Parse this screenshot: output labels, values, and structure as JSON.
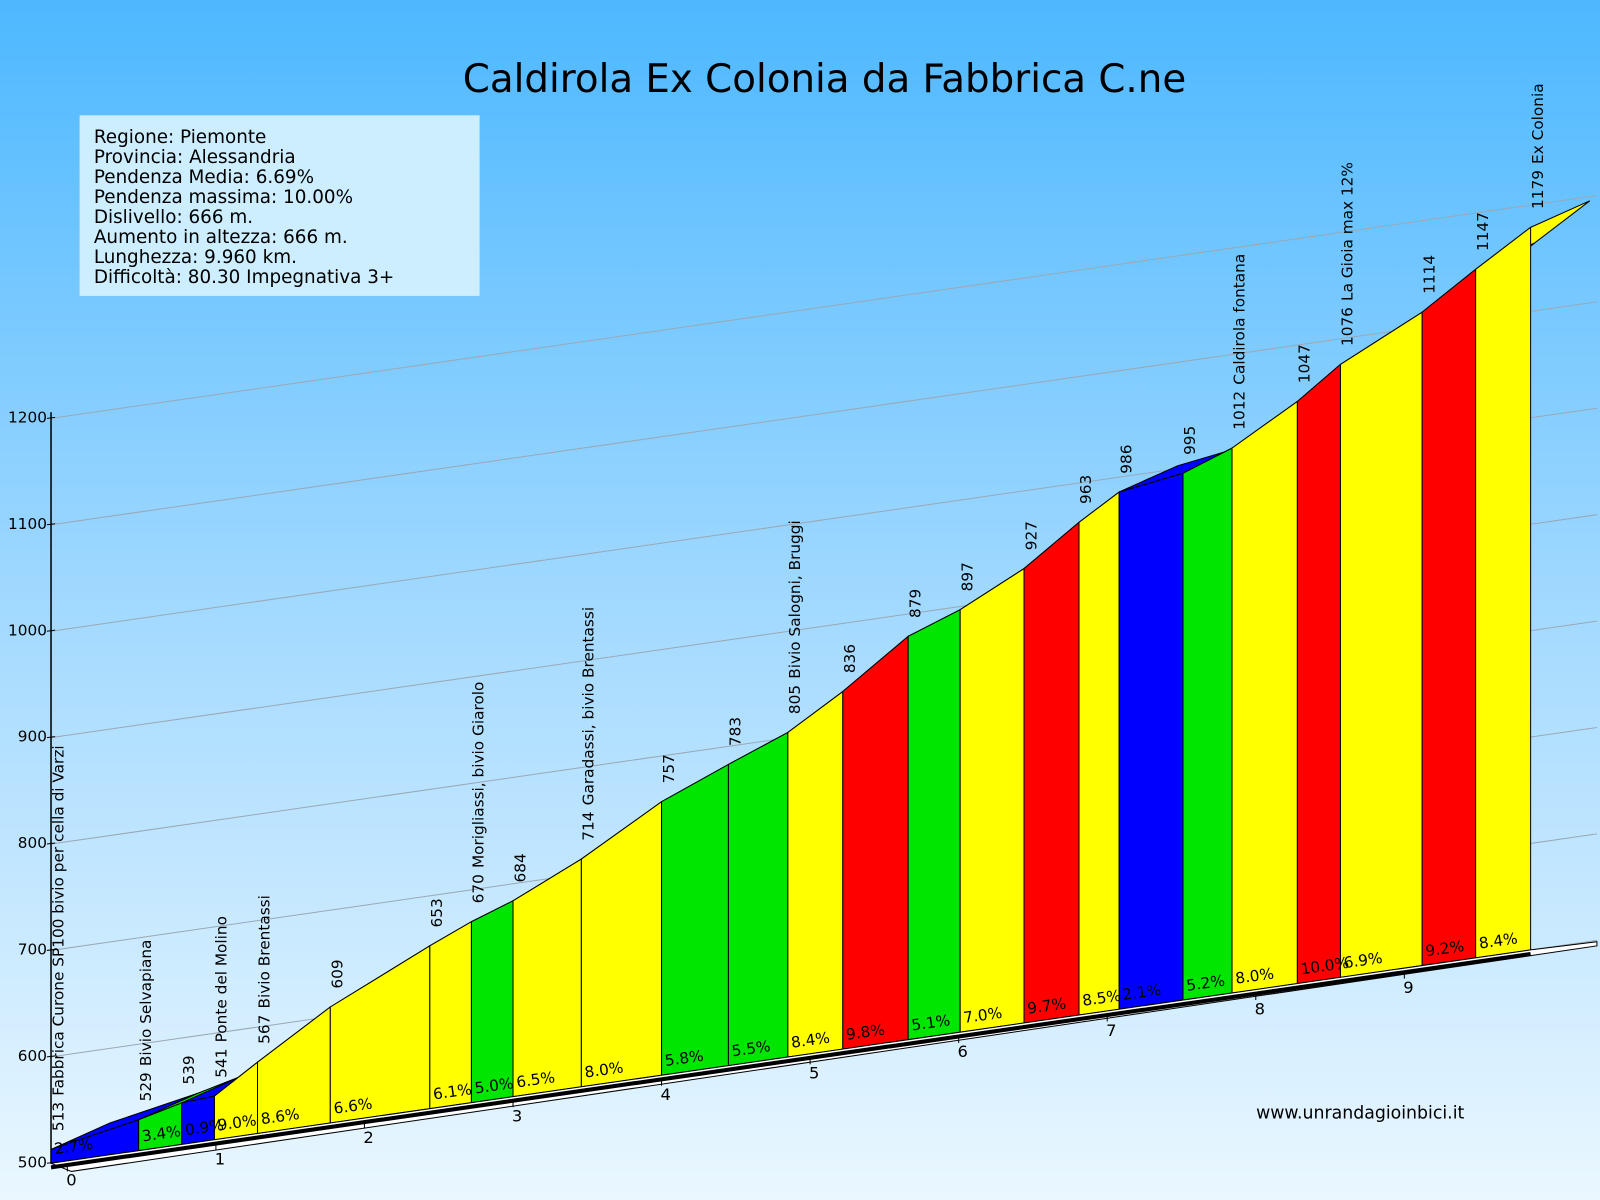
{
  "chart_data": {
    "type": "climb-profile",
    "title": "Caldirola Ex Colonia da Fabbrica C.ne",
    "info": [
      "Regione: Piemonte",
      "Provincia: Alessandria",
      "Pendenza Media: 6.69%",
      "Pendenza massima: 10.00%",
      "Dislivello:   666 m.",
      "Aumento in altezza:  666 m.",
      "Lunghezza:  9.960 km.",
      "Difficoltà: 80.30 Impegnativa 3+"
    ],
    "watermark": "www.unrandagioinbici.it",
    "x": [
      0,
      0.59,
      0.88,
      1.1,
      1.39,
      1.88,
      2.55,
      2.83,
      3.11,
      3.57,
      4.11,
      4.56,
      4.96,
      5.33,
      5.77,
      6.12,
      6.55,
      6.92,
      7.19,
      7.62,
      7.95,
      8.39,
      8.68,
      9.23,
      9.59,
      9.96
    ],
    "values": [
      513,
      529,
      539,
      541,
      567,
      609,
      653,
      670,
      684,
      714,
      757,
      783,
      805,
      836,
      879,
      897,
      927,
      963,
      986,
      995,
      1012,
      1047,
      1076,
      1114,
      1147,
      1179
    ],
    "point_names": [
      "Fabbrica Curone SP100 bivio per cella di Varzi",
      "Bivio Selvapiana",
      null,
      "Ponte del Molino",
      "Bivio Brentassi",
      null,
      null,
      "Morigliassi, bivio Giarolo",
      null,
      "Garadassi, bivio Brentassi",
      null,
      null,
      "Bivio Salogni, Bruggi",
      null,
      null,
      null,
      null,
      null,
      null,
      null,
      "Caldirola fontana",
      null,
      "La Gioia max 12%",
      null,
      null,
      "Ex Colonia"
    ],
    "gradients": [
      2.7,
      3.4,
      0.9,
      9.0,
      8.6,
      6.6,
      6.1,
      5.0,
      6.5,
      8.0,
      5.8,
      5.5,
      8.4,
      9.8,
      5.1,
      7.0,
      9.7,
      8.5,
      2.1,
      5.2,
      8.0,
      10.0,
      6.9,
      9.2,
      8.4
    ],
    "gradient_labels": [
      "2.7%",
      "3.4%",
      "0.9%",
      "9.0%",
      "8.6%",
      "6.6%",
      "6.1%",
      "5.0%",
      "6.5%",
      "8.0%",
      "5.8%",
      "5.5%",
      "8.4%",
      "9.8%",
      "5.1%",
      "7.0%",
      "9.7%",
      "8.5%",
      "2.1%",
      "5.2%",
      "8.0%",
      "10.0%",
      "6.9%",
      "9.2%",
      "8.4%"
    ],
    "segment_colors": [
      "#0000ff",
      "#00e600",
      "#0000ff",
      "#ffff00",
      "#ffff00",
      "#ffff00",
      "#ffff00",
      "#00e600",
      "#ffff00",
      "#ffff00",
      "#00e600",
      "#00e600",
      "#ffff00",
      "#ff0000",
      "#00e600",
      "#ffff00",
      "#ff0000",
      "#ffff00",
      "#0000ff",
      "#00e600",
      "#ffff00",
      "#ff0000",
      "#ffff00",
      "#ff0000",
      "#ffff00"
    ],
    "xlim": [
      0,
      9.96
    ],
    "xticks": [
      0,
      1,
      2,
      3,
      4,
      5,
      6,
      7,
      8,
      9
    ],
    "ylim": [
      500,
      1200
    ],
    "yticks": [
      500,
      600,
      700,
      800,
      900,
      1000,
      1100,
      1200
    ],
    "grid": true
  }
}
